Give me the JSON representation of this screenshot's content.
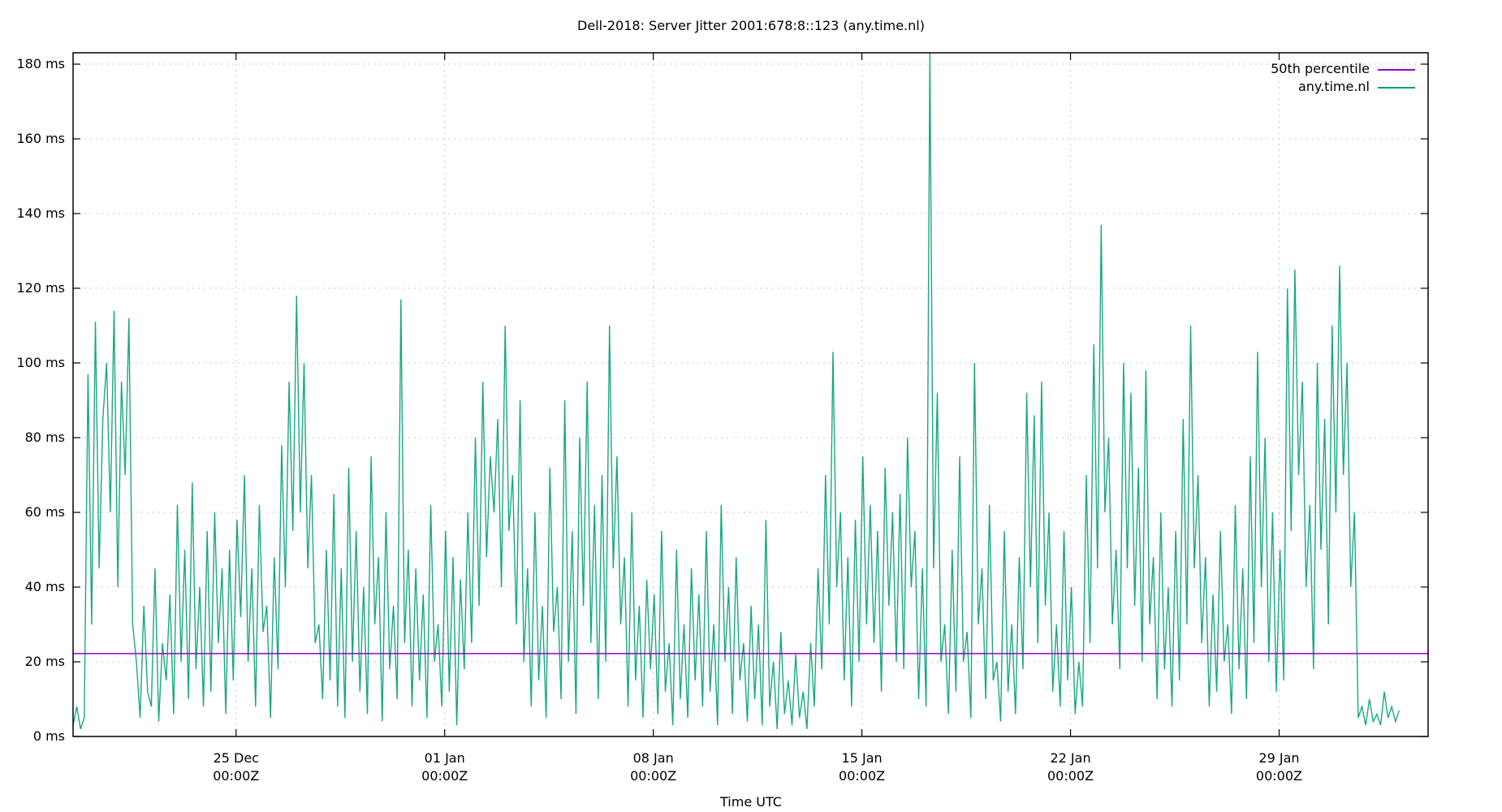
{
  "chart_data": {
    "type": "line",
    "title": "Dell-2018: Server Jitter 2001:678:8::123 (any.time.nl)",
    "xlabel": "Time UTC",
    "ylabel": "",
    "ylim": [
      0,
      183
    ],
    "yticks": [
      {
        "value": 0,
        "label": "0 ms"
      },
      {
        "value": 20,
        "label": "20 ms"
      },
      {
        "value": 40,
        "label": "40 ms"
      },
      {
        "value": 60,
        "label": "60 ms"
      },
      {
        "value": 80,
        "label": "80 ms"
      },
      {
        "value": 100,
        "label": "100 ms"
      },
      {
        "value": 120,
        "label": "120 ms"
      },
      {
        "value": 140,
        "label": "140 ms"
      },
      {
        "value": 160,
        "label": "160 ms"
      },
      {
        "value": 180,
        "label": "180 ms"
      }
    ],
    "xrange_days": [
      -5.47,
      40.0
    ],
    "xticks": [
      {
        "day": 0,
        "line1": "25 Dec",
        "line2": "00:00Z"
      },
      {
        "day": 7,
        "line1": "01 Jan",
        "line2": "00:00Z"
      },
      {
        "day": 14,
        "line1": "08 Jan",
        "line2": "00:00Z"
      },
      {
        "day": 21,
        "line1": "15 Jan",
        "line2": "00:00Z"
      },
      {
        "day": 28,
        "line1": "22 Jan",
        "line2": "00:00Z"
      },
      {
        "day": 35,
        "line1": "29 Jan",
        "line2": "00:00Z"
      }
    ],
    "grid": true,
    "legend_position": "top-right",
    "series": [
      {
        "name": "50th percentile",
        "color": "#9400d3",
        "constant": 22.2
      },
      {
        "name": "any.time.nl",
        "color": "#009e73",
        "x_start_day": -5.47,
        "x_step_day": 0.125,
        "values": [
          3,
          8,
          2,
          5,
          97,
          30,
          111,
          45,
          85,
          100,
          60,
          114,
          40,
          95,
          70,
          112,
          30,
          20,
          5,
          35,
          12,
          8,
          45,
          4,
          25,
          15,
          38,
          6,
          62,
          20,
          50,
          10,
          68,
          18,
          40,
          8,
          55,
          12,
          60,
          25,
          45,
          6,
          50,
          15,
          58,
          32,
          70,
          20,
          45,
          8,
          62,
          28,
          35,
          5,
          48,
          18,
          78,
          40,
          95,
          55,
          118,
          60,
          100,
          45,
          70,
          25,
          30,
          10,
          50,
          15,
          65,
          8,
          45,
          5,
          72,
          20,
          55,
          12,
          40,
          6,
          75,
          30,
          48,
          4,
          60,
          18,
          35,
          10,
          117,
          25,
          50,
          8,
          45,
          15,
          38,
          5,
          62,
          20,
          30,
          8,
          55,
          12,
          48,
          3,
          42,
          18,
          60,
          25,
          80,
          35,
          95,
          48,
          75,
          60,
          85,
          40,
          110,
          55,
          70,
          30,
          90,
          20,
          45,
          8,
          60,
          15,
          35,
          5,
          72,
          28,
          40,
          10,
          90,
          20,
          55,
          6,
          80,
          35,
          95,
          25,
          62,
          10,
          70,
          20,
          110,
          45,
          75,
          30,
          48,
          8,
          60,
          15,
          35,
          5,
          42,
          18,
          38,
          6,
          55,
          12,
          25,
          3,
          50,
          10,
          30,
          5,
          45,
          15,
          38,
          8,
          55,
          12,
          30,
          3,
          62,
          20,
          40,
          6,
          48,
          15,
          25,
          4,
          35,
          10,
          30,
          3,
          58,
          8,
          20,
          2,
          28,
          6,
          15,
          3,
          22,
          5,
          12,
          2,
          25,
          8,
          45,
          18,
          70,
          30,
          103,
          40,
          60,
          15,
          48,
          8,
          58,
          20,
          75,
          30,
          62,
          25,
          55,
          12,
          72,
          35,
          60,
          20,
          65,
          18,
          80,
          40,
          55,
          10,
          45,
          8,
          183,
          45,
          92,
          20,
          30,
          6,
          50,
          12,
          75,
          20,
          28,
          5,
          100,
          30,
          45,
          10,
          62,
          15,
          20,
          4,
          55,
          12,
          30,
          6,
          48,
          18,
          92,
          40,
          86,
          25,
          95,
          35,
          60,
          12,
          30,
          8,
          55,
          15,
          40,
          6,
          20,
          8,
          70,
          25,
          105,
          45,
          137,
          60,
          80,
          30,
          50,
          18,
          100,
          45,
          92,
          35,
          72,
          20,
          98,
          30,
          48,
          10,
          60,
          18,
          40,
          8,
          55,
          15,
          85,
          30,
          110,
          45,
          70,
          25,
          48,
          8,
          38,
          12,
          55,
          20,
          30,
          6,
          62,
          18,
          45,
          10,
          75,
          25,
          103,
          40,
          80,
          20,
          60,
          12,
          50,
          15,
          120,
          55,
          125,
          70,
          95,
          40,
          62,
          18,
          100,
          50,
          85,
          30,
          110,
          60,
          126,
          70,
          100,
          40,
          60,
          5,
          8,
          3,
          10,
          4,
          6,
          3,
          12,
          5,
          8,
          4,
          7
        ]
      }
    ]
  }
}
